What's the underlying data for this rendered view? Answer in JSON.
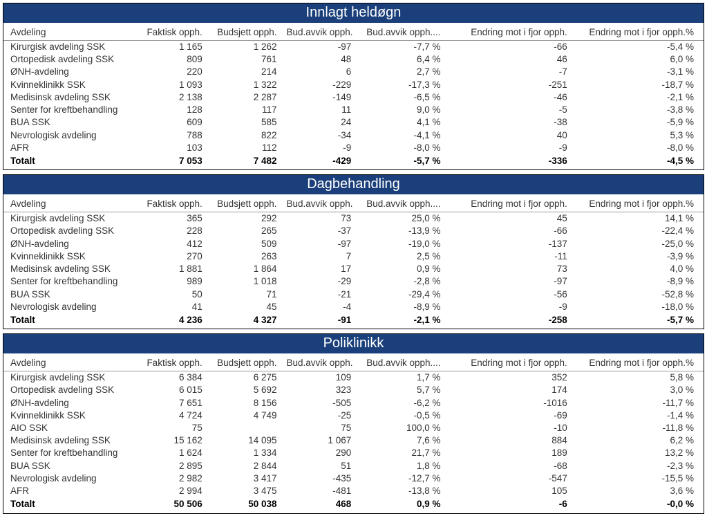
{
  "colors": {
    "header_bg": "#1b3f7a",
    "header_text": "#ffffff",
    "border": "#000000",
    "col_underline": "#999999",
    "text": "#333333",
    "total_text": "#000000"
  },
  "typography": {
    "font_family": "Segoe UI",
    "header_fontsize_pt": 16,
    "body_fontsize_pt": 10,
    "header_weight": 400,
    "total_weight": 700
  },
  "columns": [
    "Avdeling",
    "Faktisk opph.",
    "Budsjett opph.",
    "Bud.avvik opph.",
    "Bud.avvik opph....",
    "Endring mot i fjor opph.",
    "Endring mot i fjor opph.%"
  ],
  "sections": [
    {
      "title": "Innlagt heldøgn",
      "rows": [
        [
          "Kirurgisk avdeling SSK",
          "1 165",
          "1 262",
          "-97",
          "-7,7 %",
          "-66",
          "-5,4 %"
        ],
        [
          "Ortopedisk avdeling SSK",
          "809",
          "761",
          "48",
          "6,4 %",
          "46",
          "6,0 %"
        ],
        [
          "ØNH-avdeling",
          "220",
          "214",
          "6",
          "2,7 %",
          "-7",
          "-3,1 %"
        ],
        [
          "Kvinneklinikk SSK",
          "1 093",
          "1 322",
          "-229",
          "-17,3 %",
          "-251",
          "-18,7 %"
        ],
        [
          "Medisinsk avdeling SSK",
          "2 138",
          "2 287",
          "-149",
          "-6,5 %",
          "-46",
          "-2,1 %"
        ],
        [
          "Senter for kreftbehandling",
          "128",
          "117",
          "11",
          "9,0 %",
          "-5",
          "-3,8 %"
        ],
        [
          "BUA SSK",
          "609",
          "585",
          "24",
          "4,1 %",
          "-38",
          "-5,9 %"
        ],
        [
          "Nevrologisk avdeling",
          "788",
          "822",
          "-34",
          "-4,1 %",
          "40",
          "5,3 %"
        ],
        [
          "AFR",
          "103",
          "112",
          "-9",
          "-8,0 %",
          "-9",
          "-8,0 %"
        ]
      ],
      "total": [
        "Totalt",
        "7 053",
        "7 482",
        "-429",
        "-5,7 %",
        "-336",
        "-4,5 %"
      ]
    },
    {
      "title": "Dagbehandling",
      "rows": [
        [
          "Kirurgisk avdeling SSK",
          "365",
          "292",
          "73",
          "25,0 %",
          "45",
          "14,1 %"
        ],
        [
          "Ortopedisk avdeling SSK",
          "228",
          "265",
          "-37",
          "-13,9 %",
          "-66",
          "-22,4 %"
        ],
        [
          "ØNH-avdeling",
          "412",
          "509",
          "-97",
          "-19,0 %",
          "-137",
          "-25,0 %"
        ],
        [
          "Kvinneklinikk SSK",
          "270",
          "263",
          "7",
          "2,5 %",
          "-11",
          "-3,9 %"
        ],
        [
          "Medisinsk avdeling SSK",
          "1 881",
          "1 864",
          "17",
          "0,9 %",
          "73",
          "4,0 %"
        ],
        [
          "Senter for kreftbehandling",
          "989",
          "1 018",
          "-29",
          "-2,8 %",
          "-97",
          "-8,9 %"
        ],
        [
          "BUA SSK",
          "50",
          "71",
          "-21",
          "-29,4 %",
          "-56",
          "-52,8 %"
        ],
        [
          "Nevrologisk avdeling",
          "41",
          "45",
          "-4",
          "-8,9 %",
          "-9",
          "-18,0 %"
        ]
      ],
      "total": [
        "Totalt",
        "4 236",
        "4 327",
        "-91",
        "-2,1 %",
        "-258",
        "-5,7 %"
      ]
    },
    {
      "title": "Poliklinikk",
      "rows": [
        [
          "Kirurgisk avdeling SSK",
          "6 384",
          "6 275",
          "109",
          "1,7 %",
          "352",
          "5,8 %"
        ],
        [
          "Ortopedisk avdeling SSK",
          "6 015",
          "5 692",
          "323",
          "5,7 %",
          "174",
          "3,0 %"
        ],
        [
          "ØNH-avdeling",
          "7 651",
          "8 156",
          "-505",
          "-6,2 %",
          "-1016",
          "-11,7 %"
        ],
        [
          "Kvinneklinikk SSK",
          "4 724",
          "4 749",
          "-25",
          "-0,5 %",
          "-69",
          "-1,4 %"
        ],
        [
          "AIO SSK",
          "75",
          "",
          "75",
          "100,0 %",
          "-10",
          "-11,8 %"
        ],
        [
          "Medisinsk avdeling SSK",
          "15 162",
          "14 095",
          "1 067",
          "7,6 %",
          "884",
          "6,2 %"
        ],
        [
          "Senter for kreftbehandling",
          "1 624",
          "1 334",
          "290",
          "21,7 %",
          "189",
          "13,2 %"
        ],
        [
          "BUA SSK",
          "2 895",
          "2 844",
          "51",
          "1,8 %",
          "-68",
          "-2,3 %"
        ],
        [
          "Nevrologisk avdeling",
          "2 982",
          "3 417",
          "-435",
          "-12,7 %",
          "-547",
          "-15,5 %"
        ],
        [
          "AFR",
          "2 994",
          "3 475",
          "-481",
          "-13,8 %",
          "105",
          "3,6 %"
        ]
      ],
      "total": [
        "Totalt",
        "50 506",
        "50 038",
        "468",
        "0,9 %",
        "-6",
        "-0,0 %"
      ]
    }
  ]
}
